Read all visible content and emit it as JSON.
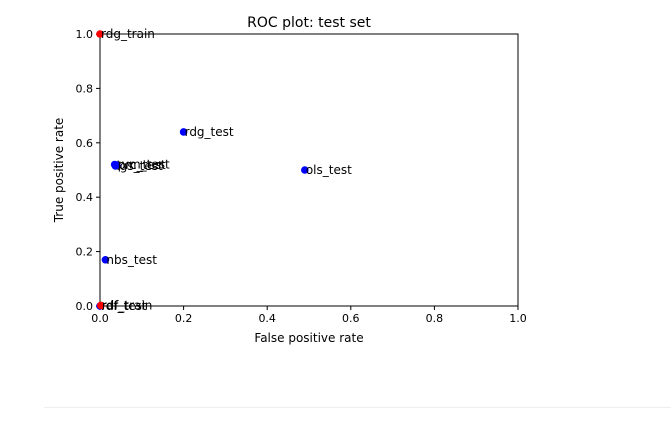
{
  "chart_data": {
    "type": "scatter",
    "title": "ROC plot: test set",
    "xlabel": "False positive rate",
    "ylabel": "True positive rate",
    "xlim": [
      0.0,
      1.0
    ],
    "ylim": [
      0.0,
      1.0
    ],
    "xticks": [
      "0.0",
      "0.2",
      "0.4",
      "0.6",
      "0.8",
      "1.0"
    ],
    "yticks": [
      "0.0",
      "0.2",
      "0.4",
      "0.6",
      "0.8",
      "1.0"
    ],
    "grid": false,
    "points": [
      {
        "label": "rdg_train",
        "x": 0.0,
        "y": 1.0,
        "color": "#ff0000"
      },
      {
        "label": "rdg_test",
        "x": 0.2,
        "y": 0.64,
        "color": "#0000ff"
      },
      {
        "label": "ols_test",
        "x": 0.49,
        "y": 0.5,
        "color": "#0000ff"
      },
      {
        "label": "svm_test",
        "x": 0.035,
        "y": 0.52,
        "color": "#0000ff"
      },
      {
        "label": "lgs_test",
        "x": 0.037,
        "y": 0.515,
        "color": "#0000ff"
      },
      {
        "label": "prc_test",
        "x": 0.04,
        "y": 0.518,
        "color": "#0000ff"
      },
      {
        "label": "nbs_test",
        "x": 0.013,
        "y": 0.17,
        "color": "#0000ff"
      },
      {
        "label": "rdf_test",
        "x": 0.0,
        "y": 0.0,
        "color": "#0000ff"
      },
      {
        "label": "rdf_train",
        "x": 0.002,
        "y": 0.002,
        "color": "#ff0000"
      }
    ]
  }
}
